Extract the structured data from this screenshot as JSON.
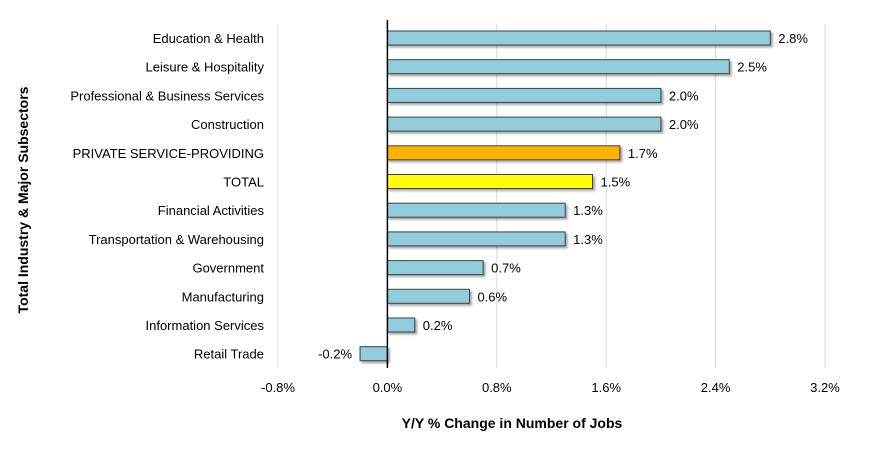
{
  "chart_data": {
    "type": "bar",
    "orientation": "horizontal",
    "xlabel": "Y/Y % Change in Number of Jobs",
    "ylabel": "Total Industry & Major Subsectors",
    "xlim": [
      -0.8,
      3.2
    ],
    "xticks": [
      -0.8,
      0.0,
      0.8,
      1.6,
      2.4,
      3.2
    ],
    "xtick_labels": [
      "-0.8%",
      "0.0%",
      "0.8%",
      "1.6%",
      "2.4%",
      "3.2%"
    ],
    "grid": "vertical",
    "categories": [
      "Education & Health",
      "Leisure & Hospitality",
      "Professional & Business Services",
      "Construction",
      "PRIVATE SERVICE-PROVIDING",
      "TOTAL",
      "Financial Activities",
      "Transportation & Warehousing",
      "Government",
      "Manufacturing",
      "Information Services",
      "Retail Trade"
    ],
    "values": [
      2.8,
      2.5,
      2.0,
      2.0,
      1.7,
      1.5,
      1.3,
      1.3,
      0.7,
      0.6,
      0.2,
      -0.2
    ],
    "value_labels": [
      "2.8%",
      "2.5%",
      "2.0%",
      "2.0%",
      "1.7%",
      "1.5%",
      "1.3%",
      "1.3%",
      "0.7%",
      "0.6%",
      "0.2%",
      "-0.2%"
    ],
    "bar_colors": [
      "#92CDDC",
      "#92CDDC",
      "#92CDDC",
      "#92CDDC",
      "#FFB300",
      "#FFFF00",
      "#92CDDC",
      "#92CDDC",
      "#92CDDC",
      "#92CDDC",
      "#92CDDC",
      "#92CDDC"
    ],
    "colors": {
      "default_bar": "#92CDDC",
      "bar_outline": "#404040",
      "grid": "#d9d9d9",
      "zero_axis": "#000000"
    }
  }
}
